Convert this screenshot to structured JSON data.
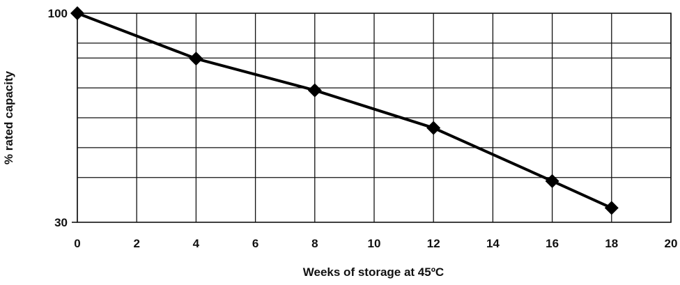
{
  "chart_data": {
    "type": "line",
    "title": "",
    "xlabel": "Weeks of storage at 45ºC",
    "ylabel": "% rated capacity",
    "xlim": [
      0,
      20
    ],
    "ylim": [
      30,
      100
    ],
    "x_ticks": [
      "0",
      "2",
      "4",
      "6",
      "8",
      "10",
      "12",
      "14",
      "16",
      "18",
      "20"
    ],
    "y_tick_labels": [
      "100",
      "30"
    ],
    "grid": true,
    "x": [
      0,
      4,
      8,
      12,
      16,
      18
    ],
    "series": [
      {
        "values": [
          100,
          84.8,
          74.2,
          61.6,
          43.8,
          34.8
        ],
        "marker": "diamond",
        "color": "#000000"
      }
    ]
  }
}
